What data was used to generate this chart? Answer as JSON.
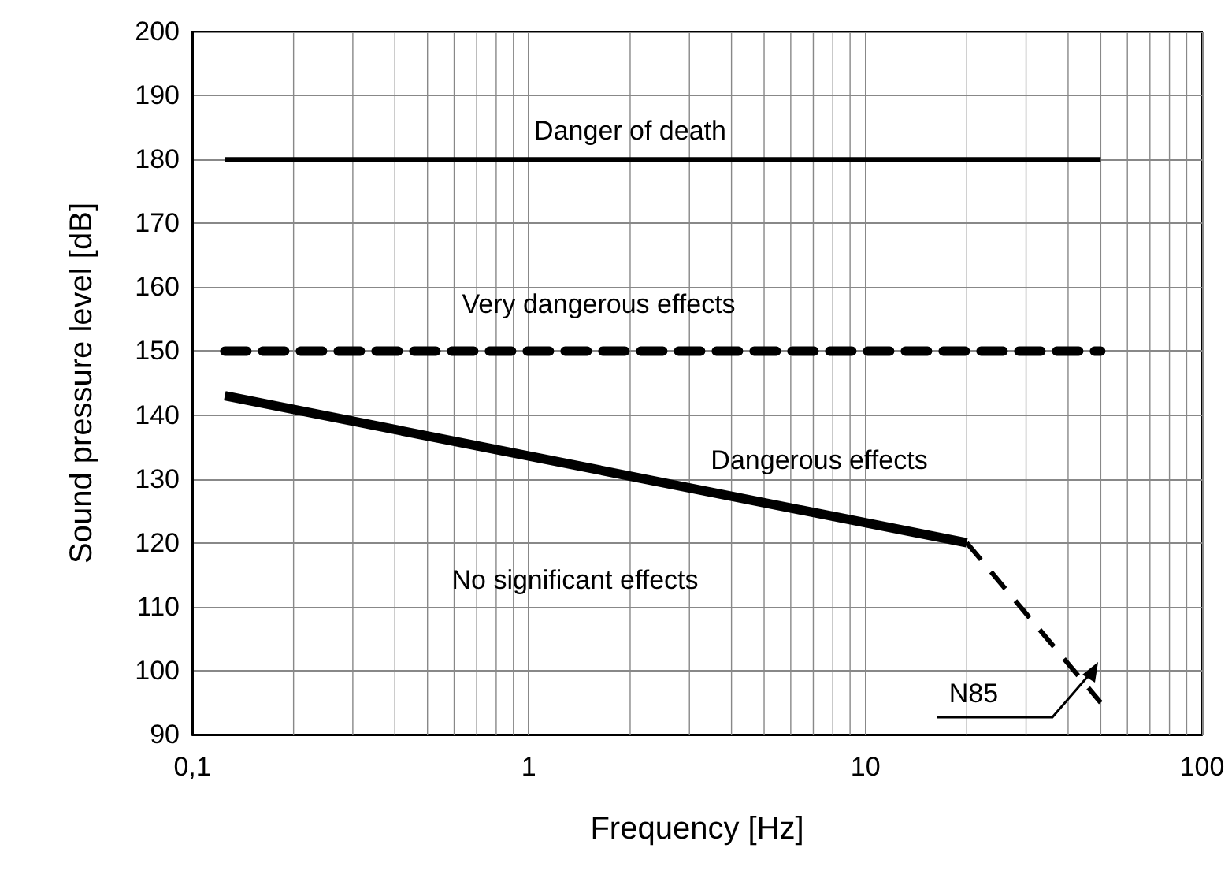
{
  "chart_data": {
    "type": "line",
    "xlabel": "Frequency [Hz]",
    "ylabel": "Sound pressure level [dB]",
    "log": "x",
    "grid": true,
    "marker": "none",
    "xlim": [
      0.1,
      100
    ],
    "xticks": [
      {
        "value": 0.1,
        "label": "0,1"
      },
      1,
      10,
      100
    ],
    "ylim": [
      90,
      200
    ],
    "yticks": [
      90,
      100,
      110,
      120,
      130,
      140,
      150,
      160,
      170,
      180,
      190,
      200
    ],
    "series": [
      {
        "color": "#000000",
        "line_style": "solid",
        "x": [
          0.125,
          50
        ],
        "values": [
          180,
          180
        ]
      },
      {
        "color": "#000000",
        "line_style": "dashed",
        "x": [
          0.125,
          50
        ],
        "values": [
          150,
          150
        ]
      },
      {
        "color": "#000000",
        "line_style": "solid",
        "x": [
          0.125,
          20
        ],
        "values": [
          143,
          120
        ]
      },
      {
        "color": "#000000",
        "line_style": "dashed",
        "x": [
          20,
          50
        ],
        "values": [
          120,
          95
        ]
      }
    ],
    "annotations": [
      "Danger of death",
      "Very dangerous effects",
      "Dangerous effects",
      "No significant effects",
      "N85"
    ]
  }
}
